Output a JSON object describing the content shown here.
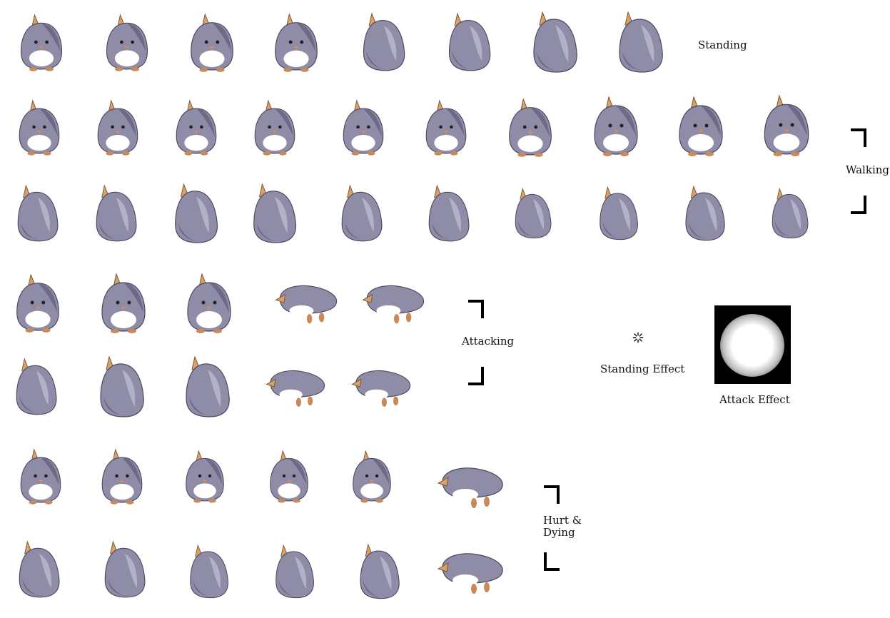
{
  "labels": {
    "standing": "Standing",
    "walking": "Walking",
    "attacking": "Attacking",
    "standing_effect": "Standing Effect",
    "attack_effect": "Attack Effect",
    "hurt_line1": "Hurt &",
    "hurt_line2": "Dying"
  },
  "colors": {
    "body": "#8e8ca6",
    "body_dark": "#6c6a86",
    "belly": "#ffffff",
    "horn": "#d9a06a",
    "feet": "#c98a5a"
  },
  "sections": {
    "standing": {
      "front_count": 4,
      "back_count": 4
    },
    "walking": {
      "front_count": 10,
      "back_count": 10
    },
    "attacking": {
      "front_count": 5,
      "back_count": 5
    },
    "hurt_dying": {
      "front_count": 6,
      "back_count": 6
    }
  }
}
